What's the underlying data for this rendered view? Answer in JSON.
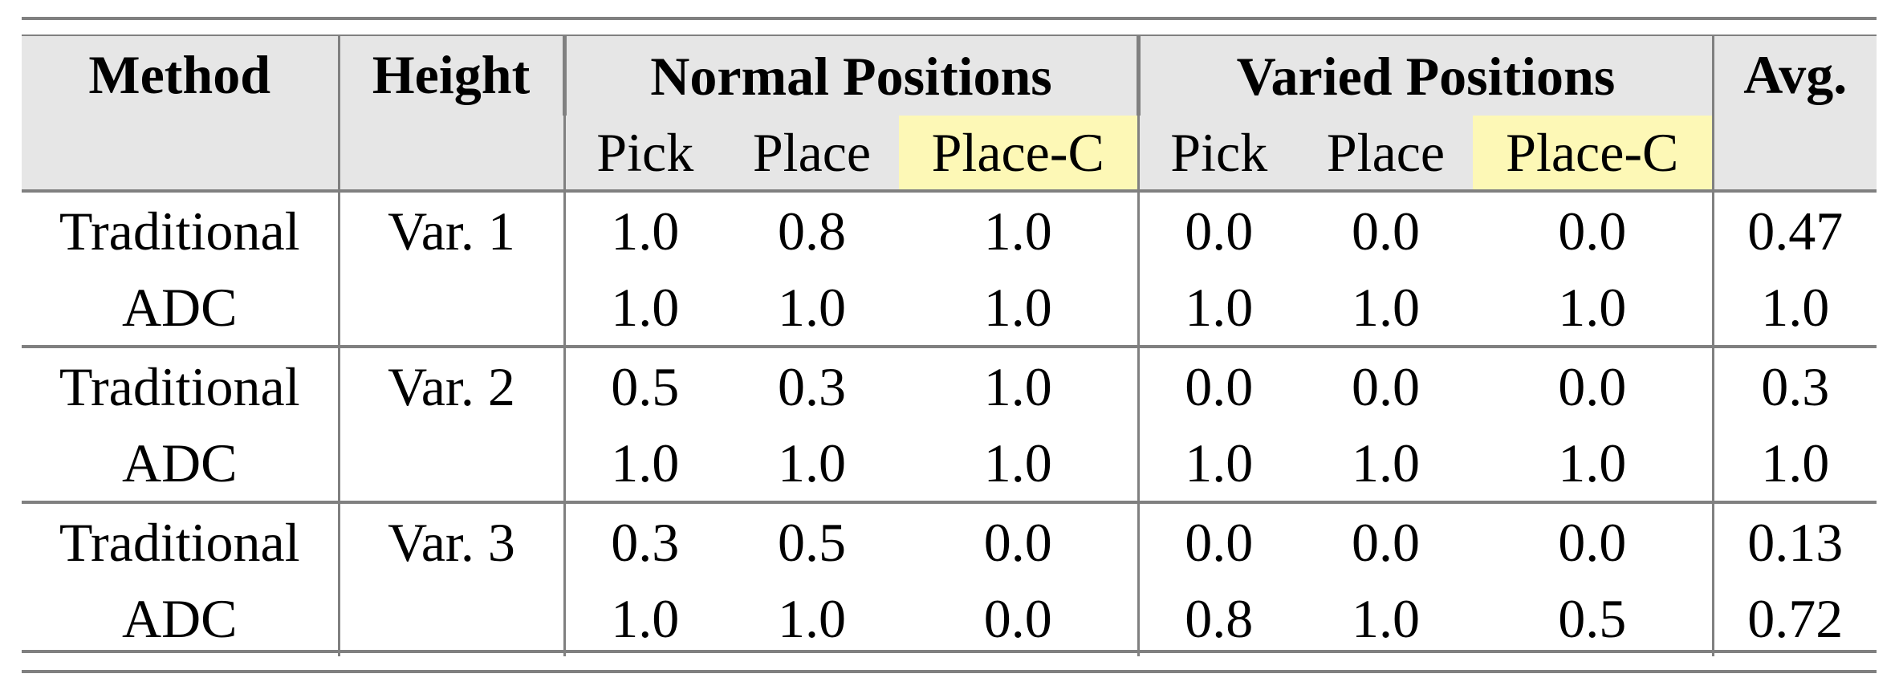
{
  "header": {
    "method": "Method",
    "height": "Height",
    "normal": "Normal Positions",
    "varied": "Varied Positions",
    "avg": "Avg.",
    "sub": [
      "Pick",
      "Place",
      "Place-C",
      "Pick",
      "Place",
      "Place-C"
    ]
  },
  "highlight_color": "#fdf8b6",
  "rows": [
    {
      "method": "Traditional",
      "height": "Var. 1",
      "vals": [
        "1.0",
        "0.8",
        "1.0",
        "0.0",
        "0.0",
        "0.0"
      ],
      "avg": "0.47"
    },
    {
      "method": "ADC",
      "height": "",
      "vals": [
        "1.0",
        "1.0",
        "1.0",
        "1.0",
        "1.0",
        "1.0"
      ],
      "avg": "1.0"
    },
    {
      "method": "Traditional",
      "height": "Var. 2",
      "vals": [
        "0.5",
        "0.3",
        "1.0",
        "0.0",
        "0.0",
        "0.0"
      ],
      "avg": "0.3"
    },
    {
      "method": "ADC",
      "height": "",
      "vals": [
        "1.0",
        "1.0",
        "1.0",
        "1.0",
        "1.0",
        "1.0"
      ],
      "avg": "1.0"
    },
    {
      "method": "Traditional",
      "height": "Var. 3",
      "vals": [
        "0.3",
        "0.5",
        "0.0",
        "0.0",
        "0.0",
        "0.0"
      ],
      "avg": "0.13"
    },
    {
      "method": "ADC",
      "height": "",
      "vals": [
        "1.0",
        "1.0",
        "0.0",
        "0.8",
        "1.0",
        "0.5"
      ],
      "avg": "0.72"
    }
  ]
}
